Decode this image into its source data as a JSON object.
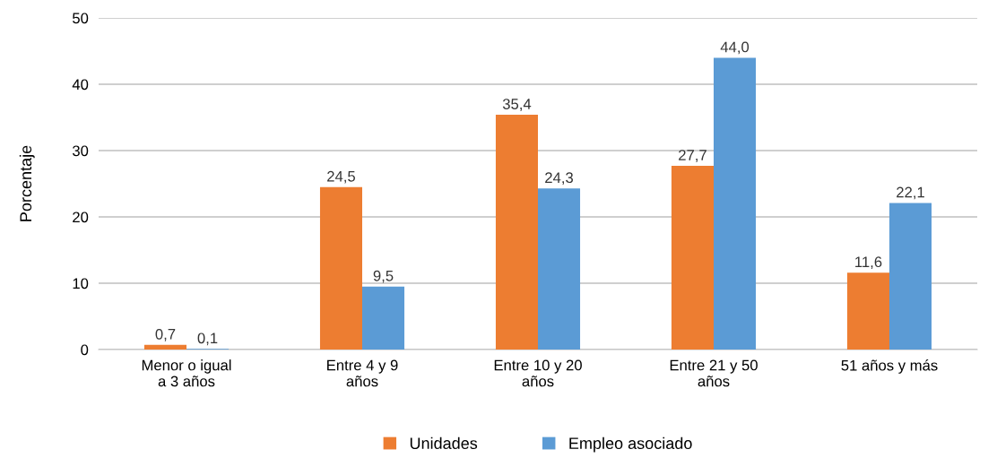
{
  "chart_data": {
    "type": "bar",
    "ylabel": "Porcentaje",
    "categories": [
      "Menor o igual\na 3 años",
      "Entre 4 y 9\naños",
      "Entre 10 y 20\naños",
      "Entre 21 y 50\naños",
      "51 años y más"
    ],
    "series": [
      {
        "name": "Unidades",
        "color": "#ed7d31",
        "values": [
          0.7,
          24.5,
          35.4,
          27.7,
          11.6
        ],
        "value_labels": [
          "0,7",
          "24,5",
          "35,4",
          "27,7",
          "11,6"
        ]
      },
      {
        "name": "Empleo asociado",
        "color": "#5b9bd5",
        "values": [
          0.1,
          9.5,
          24.3,
          44.0,
          22.1
        ],
        "value_labels": [
          "0,1",
          "9,5",
          "24,3",
          "44,0",
          "22,1"
        ]
      }
    ],
    "ylim": [
      0,
      50
    ],
    "yticks": [
      0,
      10,
      20,
      30,
      40,
      50
    ],
    "grid": "y",
    "legend": "bottom"
  }
}
